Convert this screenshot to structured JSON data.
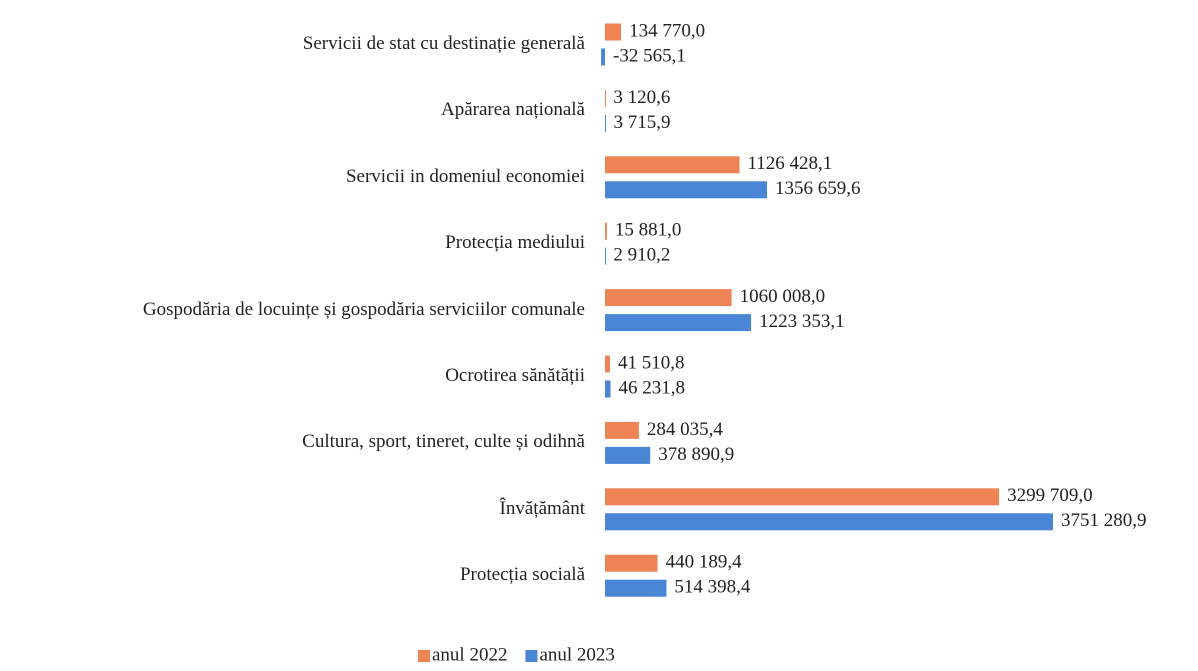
{
  "chart_data": {
    "type": "bar",
    "orientation": "horizontal",
    "categories": [
      "Servicii de stat cu destinație generală",
      "Apărarea națională",
      "Servicii in domeniul economiei",
      "Protecția mediului",
      "Gospodăria de locuințe și gospodăria serviciilor comunale",
      "Ocrotirea sănătății",
      "Cultura, sport, tineret, culte și odihnă",
      "Învățământ",
      "Protecția socială"
    ],
    "series": [
      {
        "name": "anul 2022",
        "color": "#ee8456",
        "values": [
          134770.0,
          3120.6,
          1126428.1,
          15881.0,
          1060008.0,
          41510.8,
          284035.4,
          3299709.0,
          440189.4
        ],
        "value_labels": [
          "134 770,0",
          "3 120,6",
          "1126 428,1",
          "15 881,0",
          "1060 008,0",
          "41 510,8",
          "284 035,4",
          "3299 709,0",
          "440 189,4"
        ]
      },
      {
        "name": "anul 2023",
        "color": "#4a86d6",
        "values": [
          -32565.1,
          3715.9,
          1356659.6,
          2910.2,
          1223353.1,
          46231.8,
          378890.9,
          3751280.9,
          514398.4
        ],
        "value_labels": [
          "-32 565,1",
          "3 715,9",
          "1356 659,6",
          "2 910,2",
          "1223 353,1",
          "46 231,8",
          "378 890,9",
          "3751 280,9",
          "514 398,4"
        ]
      }
    ]
  }
}
